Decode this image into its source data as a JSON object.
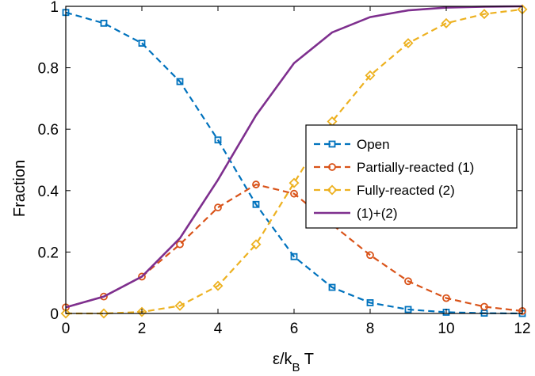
{
  "chart_data": {
    "type": "line",
    "title": "",
    "xlabel": "ε/k_B T",
    "ylabel": "Fraction",
    "xlim": [
      0,
      12
    ],
    "ylim": [
      0,
      1
    ],
    "xticks": [
      0,
      2,
      4,
      6,
      8,
      10,
      12
    ],
    "yticks": [
      0,
      0.2,
      0.4,
      0.6,
      0.8,
      1
    ],
    "xtick_labels": [
      "0",
      "2",
      "4",
      "6",
      "8",
      "10",
      "12"
    ],
    "ytick_labels": [
      "0",
      "0.2",
      "0.4",
      "0.6",
      "0.8",
      "1"
    ],
    "grid": false,
    "legend_position": "center-right",
    "x": [
      0,
      1,
      2,
      3,
      4,
      5,
      6,
      7,
      8,
      9,
      10,
      11,
      12
    ],
    "series": [
      {
        "name": "Open",
        "color": "#0072BD",
        "marker": "square",
        "line": "dashed",
        "values": [
          0.98,
          0.945,
          0.88,
          0.755,
          0.565,
          0.355,
          0.185,
          0.085,
          0.035,
          0.013,
          0.004,
          0.001,
          0.0
        ]
      },
      {
        "name": "Partially-reacted (1)",
        "color": "#D95319",
        "marker": "circle",
        "line": "dashed",
        "values": [
          0.02,
          0.055,
          0.12,
          0.225,
          0.345,
          0.42,
          0.39,
          0.29,
          0.19,
          0.105,
          0.05,
          0.022,
          0.008
        ]
      },
      {
        "name": "Fully-reacted (2)",
        "color": "#EDB120",
        "marker": "diamond",
        "line": "dashed",
        "values": [
          0.0,
          0.0,
          0.005,
          0.025,
          0.09,
          0.225,
          0.425,
          0.625,
          0.775,
          0.88,
          0.945,
          0.975,
          0.99
        ]
      },
      {
        "name": "(1)+(2)",
        "color": "#7E2F8E",
        "marker": "none",
        "line": "solid",
        "values": [
          0.02,
          0.055,
          0.12,
          0.245,
          0.435,
          0.645,
          0.815,
          0.915,
          0.965,
          0.987,
          0.996,
          0.999,
          1.0
        ]
      }
    ]
  }
}
